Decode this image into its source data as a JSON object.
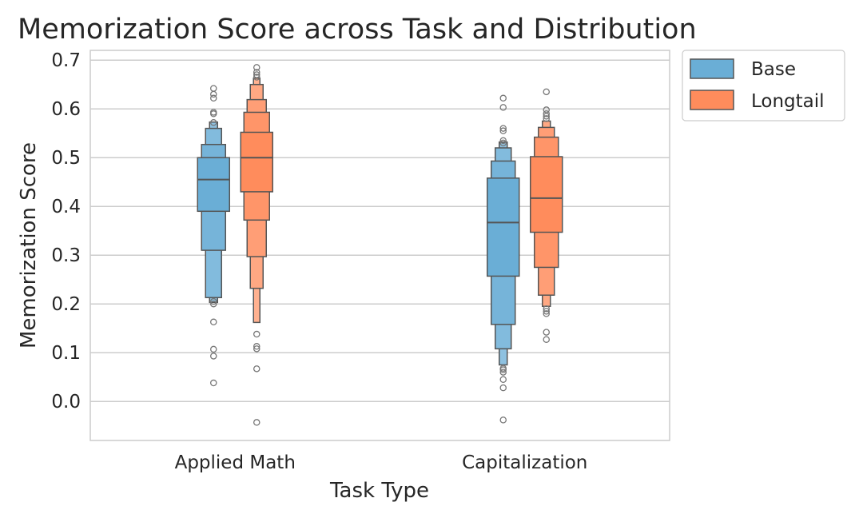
{
  "chart_data": {
    "type": "boxen",
    "title": "Memorization Score across Task and Distribution",
    "xlabel": "Task Type",
    "ylabel": "Memorization Score",
    "ylim": [
      -0.08,
      0.72
    ],
    "yticks": [
      0.0,
      0.1,
      0.2,
      0.3,
      0.4,
      0.5,
      0.6,
      0.7
    ],
    "ytick_labels": [
      "0.0",
      "0.1",
      "0.2",
      "0.3",
      "0.4",
      "0.5",
      "0.6",
      "0.7"
    ],
    "grid": true,
    "legend_position": "outside-top-right",
    "categories": [
      "Applied Math",
      "Capitalization"
    ],
    "series": [
      {
        "name": "Base",
        "color": "#6aaed6",
        "groups": [
          {
            "category": "Applied Math",
            "median": 0.455,
            "levels": [
              [
                0.39,
                0.5
              ],
              [
                0.31,
                0.527
              ],
              [
                0.213,
                0.56
              ],
              [
                0.203,
                0.573
              ]
            ],
            "outliers": [
              0.642,
              0.63,
              0.622,
              0.593,
              0.59,
              0.572,
              0.205,
              0.2,
              0.163,
              0.107,
              0.093,
              0.038
            ]
          },
          {
            "category": "Capitalization",
            "median": 0.367,
            "levels": [
              [
                0.257,
                0.458
              ],
              [
                0.158,
                0.493
              ],
              [
                0.108,
                0.52
              ],
              [
                0.075,
                0.532
              ]
            ],
            "outliers": [
              0.622,
              0.603,
              0.56,
              0.555,
              0.535,
              0.53,
              0.068,
              0.065,
              0.06,
              0.045,
              0.028,
              -0.038
            ]
          }
        ]
      },
      {
        "name": "Longtail",
        "color": "#ff8c5c",
        "groups": [
          {
            "category": "Applied Math",
            "median": 0.5,
            "levels": [
              [
                0.43,
                0.552
              ],
              [
                0.372,
                0.593
              ],
              [
                0.297,
                0.619
              ],
              [
                0.232,
                0.65
              ],
              [
                0.162,
                0.663
              ]
            ],
            "outliers": [
              0.685,
              0.675,
              0.67,
              0.665,
              0.138,
              0.113,
              0.108,
              0.067,
              -0.043
            ]
          },
          {
            "category": "Capitalization",
            "median": 0.417,
            "levels": [
              [
                0.347,
                0.502
              ],
              [
                0.275,
                0.542
              ],
              [
                0.218,
                0.562
              ],
              [
                0.195,
                0.575
              ]
            ],
            "outliers": [
              0.635,
              0.598,
              0.59,
              0.585,
              0.58,
              0.19,
              0.185,
              0.18,
              0.142,
              0.127
            ]
          }
        ]
      }
    ]
  }
}
